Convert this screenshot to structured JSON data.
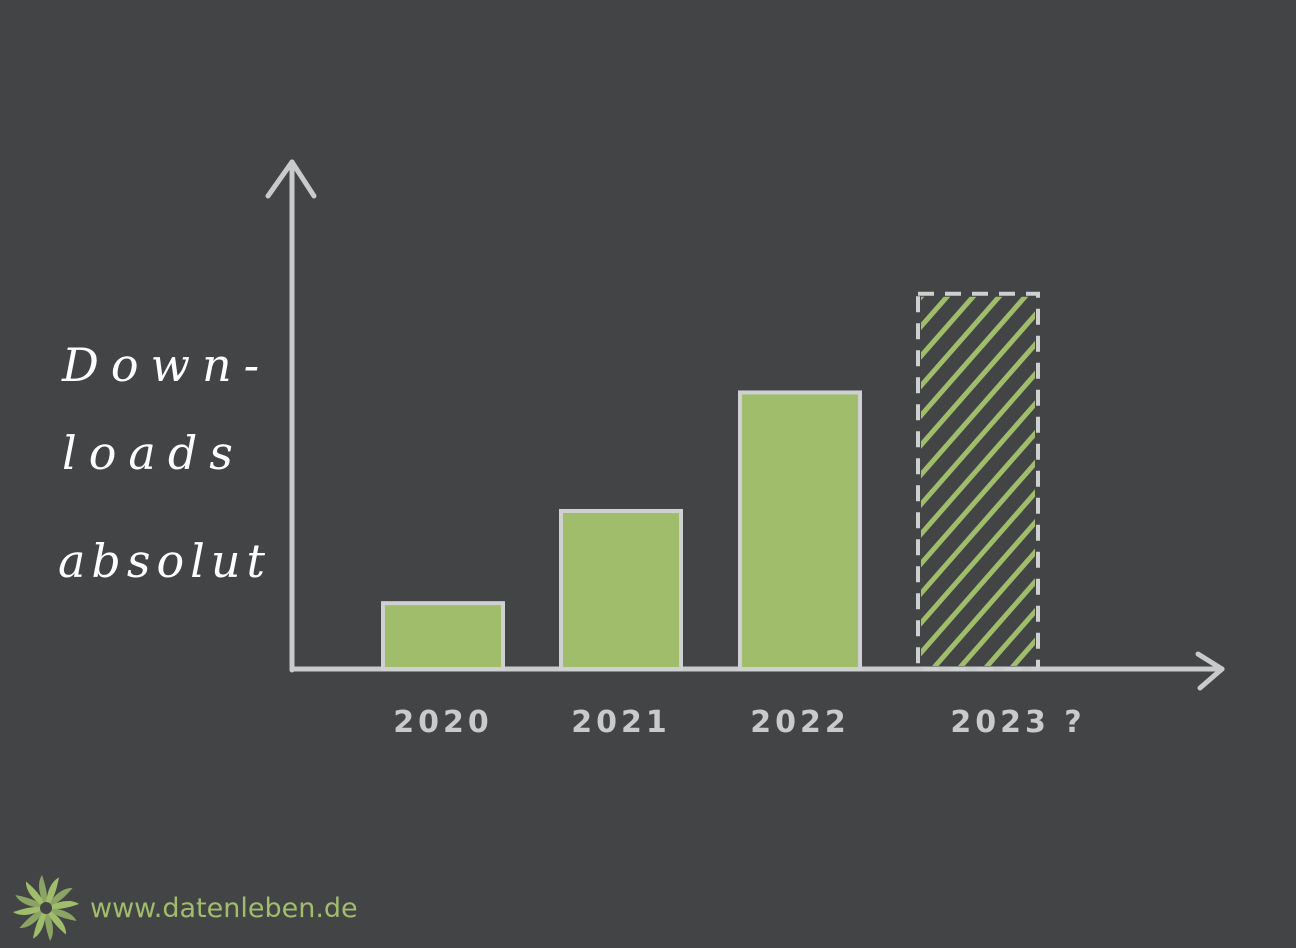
{
  "chart_data": {
    "type": "bar",
    "categories": [
      "2020",
      "2021",
      "2022",
      "2023 ?"
    ],
    "values": [
      1,
      2.4,
      4.2,
      5.7
    ],
    "projected": [
      false,
      false,
      false,
      true
    ],
    "ylabel": [
      "Down-",
      "loads",
      "absolut"
    ],
    "xlabel": "",
    "ylim": [
      0,
      7.7
    ],
    "grid": false,
    "colors": {
      "background": "#434446",
      "bar_fill": "#9fbd6a",
      "bar_outline": "#cfd0d1",
      "axis": "#c9cacb",
      "label": "#ffffff"
    }
  },
  "footer": {
    "url": "www.datenleben.de",
    "logo_icon": "green-swirl-logo-icon"
  }
}
